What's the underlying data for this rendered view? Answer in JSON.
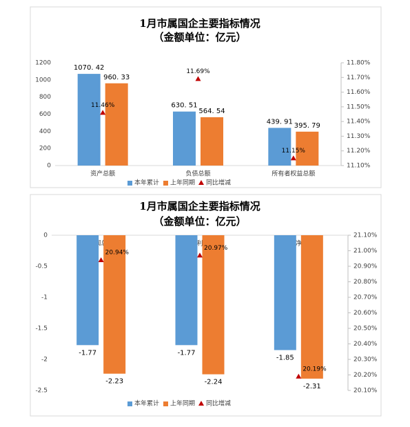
{
  "chart_data": [
    {
      "type": "bar",
      "title": "1月市属国企主要指标情况",
      "subtitle": "（金额单位：亿元）",
      "categories": [
        "资产总额",
        "负债总额",
        "所有者权益总额"
      ],
      "series": [
        {
          "name": "本年累计",
          "color": "#5b9bd5",
          "values": [
            1070.42,
            630.51,
            439.91
          ],
          "value_labels": [
            "1070. 42",
            "630. 51",
            "439. 91"
          ]
        },
        {
          "name": "上年同期",
          "color": "#ed7d31",
          "values": [
            960.33,
            564.54,
            395.79
          ],
          "value_labels": [
            "960. 33",
            "564. 54",
            "395. 79"
          ]
        },
        {
          "name": "同比增减",
          "color": "#c00000",
          "type": "scatter",
          "axis": "y2",
          "values": [
            11.46,
            11.69,
            11.15
          ],
          "value_labels": [
            "11.46%",
            "11.69%",
            "11.15%"
          ]
        }
      ],
      "ylim": [
        0,
        1200
      ],
      "yticks": [
        0,
        200,
        400,
        600,
        800,
        1000,
        1200
      ],
      "y2lim": [
        11.1,
        11.8
      ],
      "y2ticks": [
        {
          "value": 11.1,
          "label": "11.10%"
        },
        {
          "value": 11.2,
          "label": "11.20%"
        },
        {
          "value": 11.3,
          "label": "11.30%"
        },
        {
          "value": 11.4,
          "label": "11.40%"
        },
        {
          "value": 11.5,
          "label": "11.50%"
        },
        {
          "value": 11.6,
          "label": "11.60%"
        },
        {
          "value": 11.7,
          "label": "11.70%"
        },
        {
          "value": 11.8,
          "label": "11.80%"
        }
      ],
      "legend": "bottom"
    },
    {
      "type": "bar",
      "title": "1月市属国企主要指标情况",
      "subtitle": "（金额单位：亿元）",
      "categories": [
        "利润总额",
        "净利润",
        "归母净利润"
      ],
      "series": [
        {
          "name": "本年累计",
          "color": "#5b9bd5",
          "values": [
            -1.77,
            -1.77,
            -1.85
          ]
        },
        {
          "name": "上年同期",
          "color": "#ed7d31",
          "values": [
            -2.23,
            -2.24,
            -2.31
          ]
        },
        {
          "name": "同比增减",
          "color": "#c00000",
          "type": "scatter",
          "axis": "y2",
          "values": [
            20.94,
            20.97,
            20.19
          ],
          "value_labels": [
            "20.94%",
            "20.97%",
            "20.19%"
          ]
        }
      ],
      "ylim": [
        -2.5,
        0
      ],
      "yticks": [
        0,
        -0.5,
        -1,
        -1.5,
        -2,
        -2.5
      ],
      "y2lim": [
        20.1,
        21.1
      ],
      "y2ticks": [
        {
          "value": 20.1,
          "label": "20.10%"
        },
        {
          "value": 20.2,
          "label": "20.20%"
        },
        {
          "value": 20.3,
          "label": "20.30%"
        },
        {
          "value": 20.4,
          "label": "20.40%"
        },
        {
          "value": 20.5,
          "label": "20.50%"
        },
        {
          "value": 20.6,
          "label": "20.60%"
        },
        {
          "value": 20.7,
          "label": "20.70%"
        },
        {
          "value": 20.8,
          "label": "20.80%"
        },
        {
          "value": 20.9,
          "label": "20.90%"
        },
        {
          "value": 21.0,
          "label": "21.00%"
        },
        {
          "value": 21.1,
          "label": "21.10%"
        }
      ],
      "legend": "bottom"
    }
  ]
}
